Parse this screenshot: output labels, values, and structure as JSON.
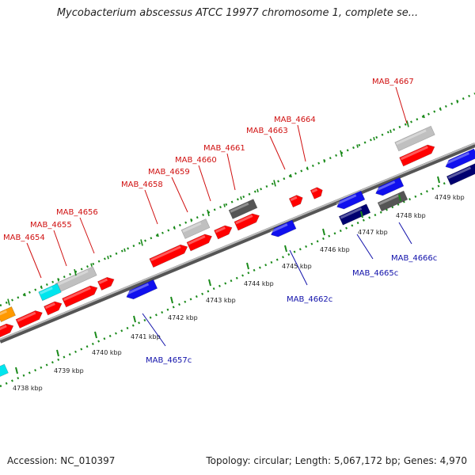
{
  "title": "Mycobacterium abscessus ATCC 19977 chromosome 1, complete se...",
  "accession": "Accession: NC_010397",
  "summary": "Topology: circular; Length: 5,067,172 bp; Genes: 4,970",
  "colors": {
    "forward_gene": "#ff0000",
    "reverse_gene": "#1010ee",
    "forward_label": "#d01010",
    "reverse_label": "#1010aa",
    "backbone": "#888888",
    "tick": "#1a8a1a",
    "cyan_feature": "#00e5ee",
    "orange_feature": "#ff9900",
    "light_gray_feature": "#c0c0c0",
    "dark_gray_feature": "#555555",
    "navy_feature": "#000070"
  },
  "scale_labels": [
    "4738 kbp",
    "4739 kbp",
    "4740 kbp",
    "4741 kbp",
    "4742 kbp",
    "4743 kbp",
    "4744 kbp",
    "4745 kbp",
    "4746 kbp",
    "4747 kbp",
    "4748 kbp",
    "4749 kbp"
  ],
  "forward_labels": [
    "MAB_4654",
    "MAB_4655",
    "MAB_4656",
    "MAB_4658",
    "MAB_4659",
    "MAB_4660",
    "MAB_4661",
    "MAB_4663",
    "MAB_4664",
    "MAB_4667"
  ],
  "reverse_labels": [
    "MAB_4657c",
    "MAB_4662c",
    "MAB_4665c",
    "MAB_4666c"
  ]
}
